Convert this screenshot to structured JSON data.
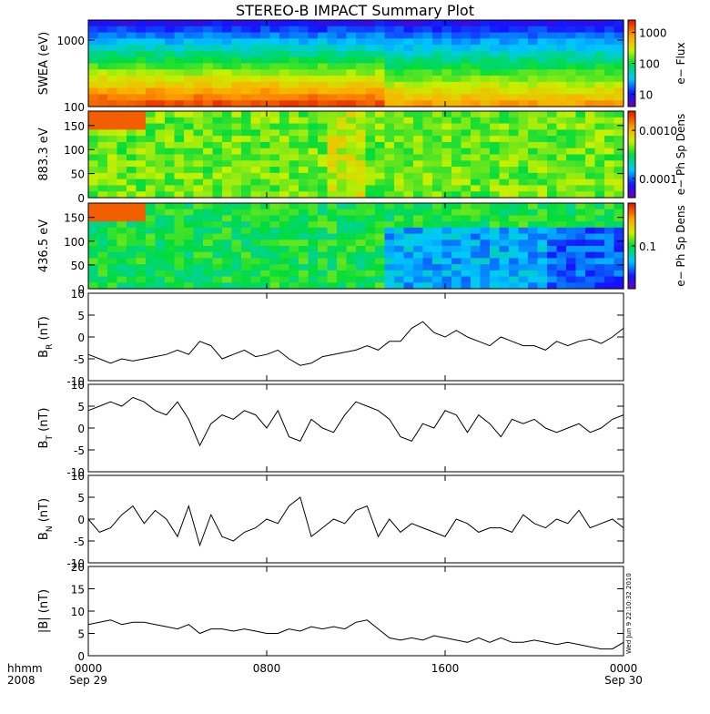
{
  "chart_data": {
    "title": "STEREO-B IMPACT Summary Plot",
    "x_range": [
      "0000 Sep 29",
      "0000 Sep 30"
    ],
    "x_tick_labels": [
      {
        "hhmm": "0000",
        "date": "Sep 29"
      },
      {
        "hhmm": "0800",
        "date": ""
      },
      {
        "hhmm": "1600",
        "date": ""
      },
      {
        "hhmm": "0000",
        "date": "Sep 30"
      }
    ],
    "x_axis_caption": {
      "line1": "hhmm",
      "line2": "2008"
    },
    "timestamp": "Wed Jun  9 22:10:32 2010",
    "panels": [
      {
        "type": "heatmap",
        "ylabel": "SWEA (eV)",
        "ylim": [
          100,
          2000
        ],
        "yscale": "log",
        "y_tick_labels": [
          "100",
          "1000"
        ],
        "colorbar_label": "e− Flux",
        "colorbar_tick_labels": [
          "10",
          "100",
          "1000"
        ],
        "colorbar_scale": "log"
      },
      {
        "type": "heatmap",
        "ylabel": "883.3 eV",
        "ylim": [
          0,
          180
        ],
        "y_tick_labels": [
          "0",
          "50",
          "100",
          "150"
        ],
        "colorbar_label": "e− Ph Sp Dens",
        "colorbar_tick_labels": [
          "0.0001",
          "0.0010"
        ],
        "colorbar_scale": "log"
      },
      {
        "type": "heatmap",
        "ylabel": "436.5 eV",
        "ylim": [
          0,
          180
        ],
        "y_tick_labels": [
          "0",
          "50",
          "100",
          "150"
        ],
        "colorbar_label": "e− Ph Sp Dens",
        "colorbar_tick_labels": [
          "0.1"
        ],
        "colorbar_scale": "log"
      },
      {
        "type": "line",
        "ylabel": "B_R (nT)",
        "ylim": [
          -10,
          10
        ],
        "y_tick_labels": [
          "-10",
          "-5",
          "0",
          "5",
          "10"
        ],
        "x_hours": [
          0,
          0.5,
          1,
          1.5,
          2,
          2.5,
          3,
          3.5,
          4,
          4.5,
          5,
          5.5,
          6,
          6.5,
          7,
          7.5,
          8,
          8.5,
          9,
          9.5,
          10,
          10.5,
          11,
          11.5,
          12,
          12.5,
          13,
          13.5,
          14,
          14.5,
          15,
          15.5,
          16,
          16.5,
          17,
          17.5,
          18,
          18.5,
          19,
          19.5,
          20,
          20.5,
          21,
          21.5,
          22,
          22.5,
          23,
          23.5,
          24
        ],
        "values": [
          -4,
          -5,
          -6,
          -5,
          -5.5,
          -5,
          -4.5,
          -4,
          -3,
          -4,
          -1,
          -2,
          -5,
          -4,
          -3,
          -4.5,
          -4,
          -3,
          -5,
          -6.5,
          -6,
          -4.5,
          -4,
          -3.5,
          -3,
          -2,
          -3,
          -1,
          -1,
          2,
          3.5,
          1,
          0,
          1.5,
          0,
          -1,
          -2,
          0,
          -1,
          -2,
          -2,
          -3,
          -1,
          -2,
          -1,
          -0.5,
          -1.5,
          0,
          2
        ]
      },
      {
        "type": "line",
        "ylabel": "B_T (nT)",
        "ylim": [
          -10,
          10
        ],
        "y_tick_labels": [
          "-10",
          "-5",
          "0",
          "5",
          "10"
        ],
        "x_hours": [
          0,
          0.5,
          1,
          1.5,
          2,
          2.5,
          3,
          3.5,
          4,
          4.5,
          5,
          5.5,
          6,
          6.5,
          7,
          7.5,
          8,
          8.5,
          9,
          9.5,
          10,
          10.5,
          11,
          11.5,
          12,
          12.5,
          13,
          13.5,
          14,
          14.5,
          15,
          15.5,
          16,
          16.5,
          17,
          17.5,
          18,
          18.5,
          19,
          19.5,
          20,
          20.5,
          21,
          21.5,
          22,
          22.5,
          23,
          23.5,
          24
        ],
        "values": [
          4,
          5,
          6,
          5,
          7,
          6,
          4,
          3,
          6,
          2,
          -4,
          1,
          3,
          2,
          4,
          3,
          0,
          4,
          -2,
          -3,
          2,
          0,
          -1,
          3,
          6,
          5,
          4,
          2,
          -2,
          -3,
          1,
          0,
          4,
          3,
          -1,
          3,
          1,
          -2,
          2,
          1,
          2,
          0,
          -1,
          0,
          1,
          -1,
          0,
          2,
          3
        ]
      },
      {
        "type": "line",
        "ylabel": "B_N (nT)",
        "ylim": [
          -10,
          10
        ],
        "y_tick_labels": [
          "-10",
          "-5",
          "0",
          "5",
          "10"
        ],
        "x_hours": [
          0,
          0.5,
          1,
          1.5,
          2,
          2.5,
          3,
          3.5,
          4,
          4.5,
          5,
          5.5,
          6,
          6.5,
          7,
          7.5,
          8,
          8.5,
          9,
          9.5,
          10,
          10.5,
          11,
          11.5,
          12,
          12.5,
          13,
          13.5,
          14,
          14.5,
          15,
          15.5,
          16,
          16.5,
          17,
          17.5,
          18,
          18.5,
          19,
          19.5,
          20,
          20.5,
          21,
          21.5,
          22,
          22.5,
          23,
          23.5,
          24
        ],
        "values": [
          0,
          -3,
          -2,
          1,
          3,
          -1,
          2,
          0,
          -4,
          3,
          -6,
          1,
          -4,
          -5,
          -3,
          -2,
          0,
          -1,
          3,
          5,
          -4,
          -2,
          0,
          -1,
          2,
          3,
          -4,
          0,
          -3,
          -1,
          -2,
          -3,
          -4,
          0,
          -1,
          -3,
          -2,
          -2,
          -3,
          1,
          -1,
          -2,
          0,
          -1,
          2,
          -2,
          -1,
          0,
          -2
        ]
      },
      {
        "type": "line",
        "ylabel": "|B| (nT)",
        "ylim": [
          0,
          20
        ],
        "y_tick_labels": [
          "0",
          "5",
          "10",
          "15",
          "20"
        ],
        "x_hours": [
          0,
          0.5,
          1,
          1.5,
          2,
          2.5,
          3,
          3.5,
          4,
          4.5,
          5,
          5.5,
          6,
          6.5,
          7,
          7.5,
          8,
          8.5,
          9,
          9.5,
          10,
          10.5,
          11,
          11.5,
          12,
          12.5,
          13,
          13.5,
          14,
          14.5,
          15,
          15.5,
          16,
          16.5,
          17,
          17.5,
          18,
          18.5,
          19,
          19.5,
          20,
          20.5,
          21,
          21.5,
          22,
          22.5,
          23,
          23.5,
          24
        ],
        "values": [
          7,
          7.5,
          8,
          7,
          7.5,
          7.5,
          7,
          6.5,
          6,
          7,
          5,
          6,
          6,
          5.5,
          6,
          5.5,
          5,
          5,
          6,
          5.5,
          6.5,
          6,
          6.5,
          6,
          7.5,
          8,
          6,
          4,
          3.5,
          4,
          3.5,
          4.5,
          4,
          3.5,
          3,
          4,
          3,
          4,
          3,
          3,
          3.5,
          3,
          2.5,
          3,
          2.5,
          2,
          1.5,
          1.5,
          3
        ]
      }
    ]
  }
}
